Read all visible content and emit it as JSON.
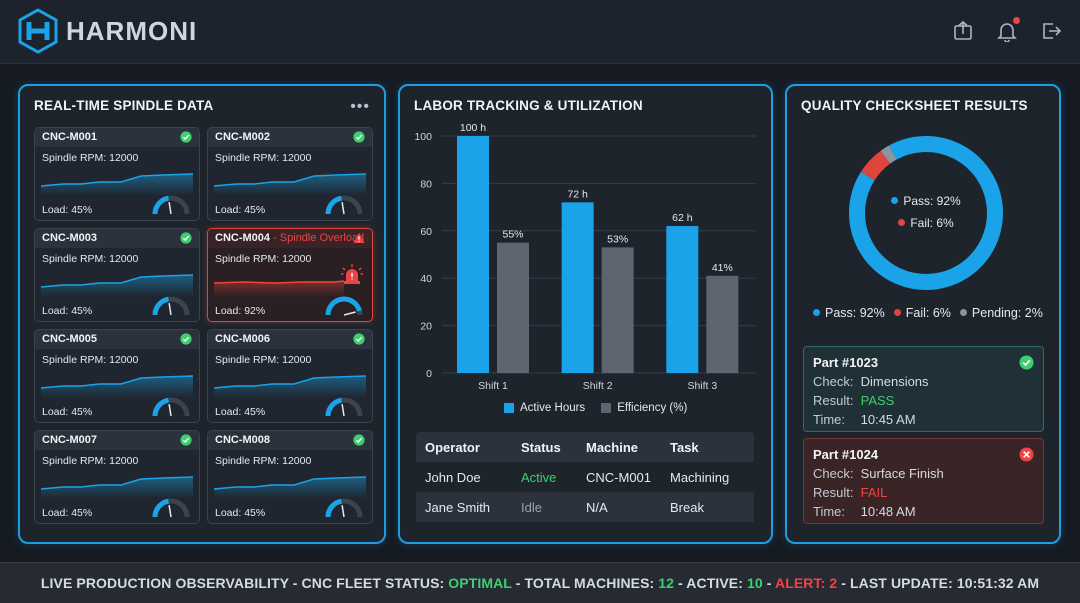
{
  "header": {
    "brand": "HARMONI",
    "icons": [
      "export-icon",
      "bell-icon",
      "logout-icon"
    ]
  },
  "spindle": {
    "title": "REAL-TIME SPINDLE DATA",
    "more_icon": "more-options-icon",
    "rpm_prefix": "Spindle RPM: ",
    "load_prefix": "Load: ",
    "machines": [
      {
        "id": "CNC-M001",
        "rpm": "Spindle RPM: 12000",
        "load": "Load: 45%",
        "status": "ok",
        "load_value": 45
      },
      {
        "id": "CNC-M002",
        "rpm": "Spindle RPM: 12000",
        "load": "Load: 45%",
        "status": "ok",
        "load_value": 45
      },
      {
        "id": "CNC-M003",
        "rpm": "Spindle RPM: 12000",
        "load": "Load: 45%",
        "status": "ok",
        "load_value": 45
      },
      {
        "id": "CNC-M004",
        "alert_text": " - Spindle Overload",
        "rpm": "Spindle RPM: 12000",
        "load": "Load: 92%",
        "status": "alert",
        "load_value": 92
      },
      {
        "id": "CNC-M005",
        "rpm": "Spindle RPM: 12000",
        "load": "Load: 45%",
        "status": "ok",
        "load_value": 45
      },
      {
        "id": "CNC-M006",
        "rpm": "Spindle RPM: 12000",
        "load": "Load: 45%",
        "status": "ok",
        "load_value": 45
      },
      {
        "id": "CNC-M007",
        "rpm": "Spindle RPM: 12000",
        "load": "Load: 45%",
        "status": "ok",
        "load_value": 45
      },
      {
        "id": "CNC-M008",
        "rpm": "Spindle RPM: 12000",
        "load": "Load: 45%",
        "status": "ok",
        "load_value": 45
      }
    ]
  },
  "labor": {
    "title": "LABOR TRACKING & UTILIZATION",
    "chart_data": {
      "type": "bar",
      "categories": [
        "Shift 1",
        "Shift 2",
        "Shift 3"
      ],
      "series": [
        {
          "name": "Active Hours",
          "values": [
            100,
            72,
            62
          ],
          "labels": [
            "100 h",
            "72 h",
            "62 h"
          ],
          "color": "#1aa3e8"
        },
        {
          "name": "Efficiency (%)",
          "values": [
            55,
            53,
            41
          ],
          "labels": [
            "55%",
            "53%",
            "41%"
          ],
          "color": "#5c6570"
        }
      ],
      "yticks": [
        0,
        20,
        40,
        60,
        80,
        100
      ],
      "ylim": [
        0,
        100
      ],
      "legend_position": "bottom"
    },
    "table": {
      "headers": [
        "Operator",
        "Status",
        "Machine",
        "Task"
      ],
      "rows": [
        {
          "operator": "John Doe",
          "status": "Active",
          "machine": "CNC-M001",
          "task": "Machining"
        },
        {
          "operator": "Jane Smith",
          "status": "Idle",
          "machine": "N/A",
          "task": "Break"
        }
      ]
    }
  },
  "quality": {
    "title": "QUALITY CHECKSHEET RESULTS",
    "chart_data": {
      "type": "pie",
      "donut": true,
      "slices": [
        {
          "name": "Pass",
          "value": 92,
          "color": "#1aa3e8"
        },
        {
          "name": "Fail",
          "value": 6,
          "color": "#e0453d"
        },
        {
          "name": "Pending",
          "value": 2,
          "color": "#8c949e"
        }
      ],
      "center_lines": [
        "Pass: 92%",
        "Fail: 6%"
      ],
      "legend": [
        "Pass: 92%",
        "Fail: 6%",
        "Pending: 2%"
      ]
    },
    "parts": [
      {
        "title": "Part #1023",
        "check_label": "Check:",
        "check": "Dimensions",
        "result_label": "Result:",
        "result": "PASS",
        "time_label": "Time:",
        "time": "10:45 AM",
        "status": "pass"
      },
      {
        "title": "Part #1024",
        "check_label": "Check:",
        "check": "Surface Finish",
        "result_label": "Result:",
        "result": "FAIL",
        "time_label": "Time:",
        "time": "10:48 AM",
        "status": "fail"
      }
    ]
  },
  "footer": {
    "part1": "LIVE PRODUCTION OBSERVABILITY - CNC FLEET STATUS: ",
    "fleet_status": "OPTIMAL",
    "part2": " - TOTAL MACHINES: ",
    "total": "12",
    "part3": " - ACTIVE: ",
    "active": "10",
    "part4": " - ",
    "alert_label": "ALERT:",
    "part5": " ",
    "alert": "2",
    "part6": " - LAST UPDATE: 10:51:32 AM"
  },
  "colors": {
    "accent": "#1f9de0",
    "ok": "#3ecf6e",
    "alert": "#ef4444",
    "panel_bg": "#1e242c"
  }
}
